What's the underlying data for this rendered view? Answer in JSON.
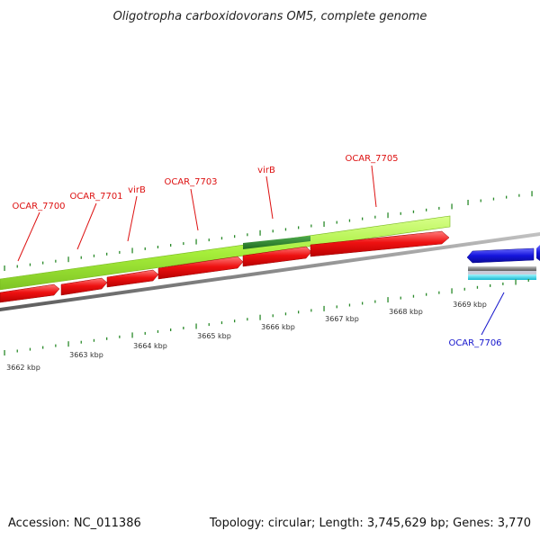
{
  "title": "Oligotropha carboxidovorans OM5, complete genome",
  "footer": {
    "accession": "Accession: NC_011386",
    "topology": "Topology: circular; Length: 3,745,629 bp; Genes: 3,770"
  },
  "colors": {
    "forward_gene": "#ee1111",
    "reverse_gene": "#1515dd",
    "feature_track": "#a6ee3a",
    "highlight": "#2f8a2f",
    "backbone": "#8a8a8a",
    "ticks": "#2a8a2a",
    "label_forward": "#dd1111",
    "label_reverse": "#1515cc"
  },
  "gene_labels": [
    {
      "id": "g7700",
      "name": "OCAR_7700",
      "strand": "forward"
    },
    {
      "id": "g7701",
      "name": "OCAR_7701",
      "strand": "forward"
    },
    {
      "id": "gvirB1",
      "name": "virB",
      "strand": "forward"
    },
    {
      "id": "g7703",
      "name": "OCAR_7703",
      "strand": "forward"
    },
    {
      "id": "gvirB2",
      "name": "virB",
      "strand": "forward"
    },
    {
      "id": "g7705",
      "name": "OCAR_7705",
      "strand": "forward"
    },
    {
      "id": "g7706",
      "name": "OCAR_7706",
      "strand": "reverse"
    }
  ],
  "kbp_ticks": [
    "3662 kbp",
    "3663 kbp",
    "3664 kbp",
    "3665 kbp",
    "3666 kbp",
    "3667 kbp",
    "3668 kbp",
    "3669 kbp"
  ]
}
